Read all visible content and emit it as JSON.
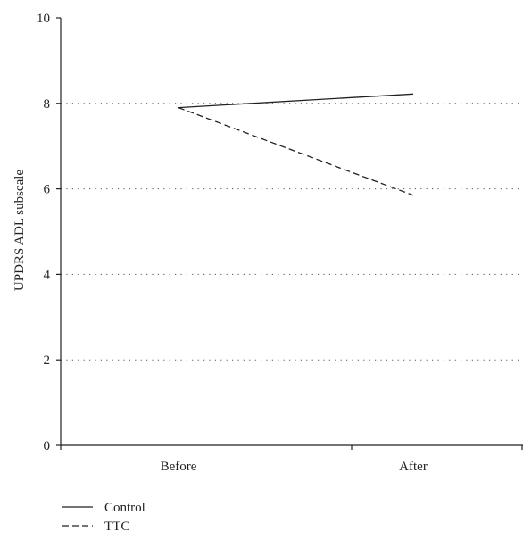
{
  "chart_data": {
    "type": "line",
    "title": "",
    "xlabel": "",
    "ylabel": "UPDRS ADL subscale",
    "categories": [
      "Before",
      "After"
    ],
    "ylim": [
      0,
      10
    ],
    "yticks": [
      0,
      2,
      4,
      6,
      8,
      10
    ],
    "grid": true,
    "legend_position": "bottom-left",
    "series": [
      {
        "name": "Control",
        "values": [
          7.9,
          8.22
        ],
        "line_style": "solid",
        "color": "#222222"
      },
      {
        "name": "TTC",
        "values": [
          7.9,
          5.85
        ],
        "line_style": "dashed",
        "color": "#222222"
      }
    ]
  }
}
